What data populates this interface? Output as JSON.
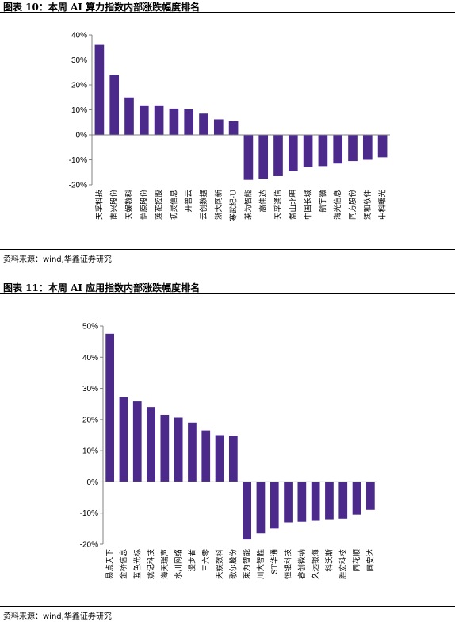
{
  "colors": {
    "bar": "#4b2a8c",
    "axis": "#808080",
    "rule": "#000000"
  },
  "charts": [
    {
      "title": "图表 10：本周 AI 算力指数内部涨跌幅度排名",
      "source": "资料来源：wind,华鑫证券研究",
      "chart_data": {
        "type": "bar",
        "title": "图表 10：本周 AI 算力指数内部涨跌幅度排名",
        "xlabel": "",
        "ylabel": "",
        "ylim": [
          -20,
          40
        ],
        "yticks": [
          "40%",
          "30%",
          "20%",
          "10%",
          "0%",
          "-10%",
          "-20%"
        ],
        "categories": [
          "天孚科技",
          "南兴股份",
          "天娱数科",
          "恺原股份",
          "莲花控股",
          "初灵信息",
          "开普云",
          "云创数据",
          "浙大网新",
          "寒武纪-U",
          "莱为智能",
          "高伟达",
          "天孚通信",
          "常山北明",
          "中国长城",
          "航宇微",
          "海光信息",
          "同方股份",
          "润和软件",
          "中科曙光"
        ],
        "values": [
          36,
          24,
          15,
          11.8,
          11.8,
          10.5,
          10.2,
          8.5,
          6.2,
          5.5,
          -18,
          -17.5,
          -16.5,
          -14.5,
          -13,
          -12.5,
          -11.5,
          -10.5,
          -10,
          -9
        ]
      }
    },
    {
      "title": "图表 11：本周 AI 应用指数内部涨跌幅度排名",
      "source": "资料来源：wind,华鑫证券研究",
      "chart_data": {
        "type": "bar",
        "title": "图表 11：本周 AI 应用指数内部涨跌幅度排名",
        "xlabel": "",
        "ylabel": "",
        "ylim": [
          -20,
          50
        ],
        "yticks": [
          "50%",
          "40%",
          "30%",
          "20%",
          "10%",
          "0%",
          "-10%",
          "-20%"
        ],
        "categories": [
          "易点天下",
          "金桥信息",
          "蓝色光标",
          "姚记科技",
          "海天瑞声",
          "水川网络",
          "漫步者",
          "三六零",
          "天娱数科",
          "歌尔股份",
          "莱为智能",
          "川大智胜",
          "ST华通",
          "恒银科技",
          "睿创微纳",
          "久远银海",
          "科沃斯",
          "胜宏科技",
          "同花顺",
          "同安达"
        ],
        "values": [
          47.5,
          27.2,
          25.8,
          24,
          21.5,
          20.6,
          19,
          16.5,
          15,
          14.8,
          -18.5,
          -16.5,
          -15,
          -13,
          -12.8,
          -12.5,
          -12,
          -11.8,
          -10.5,
          -9
        ]
      }
    }
  ]
}
